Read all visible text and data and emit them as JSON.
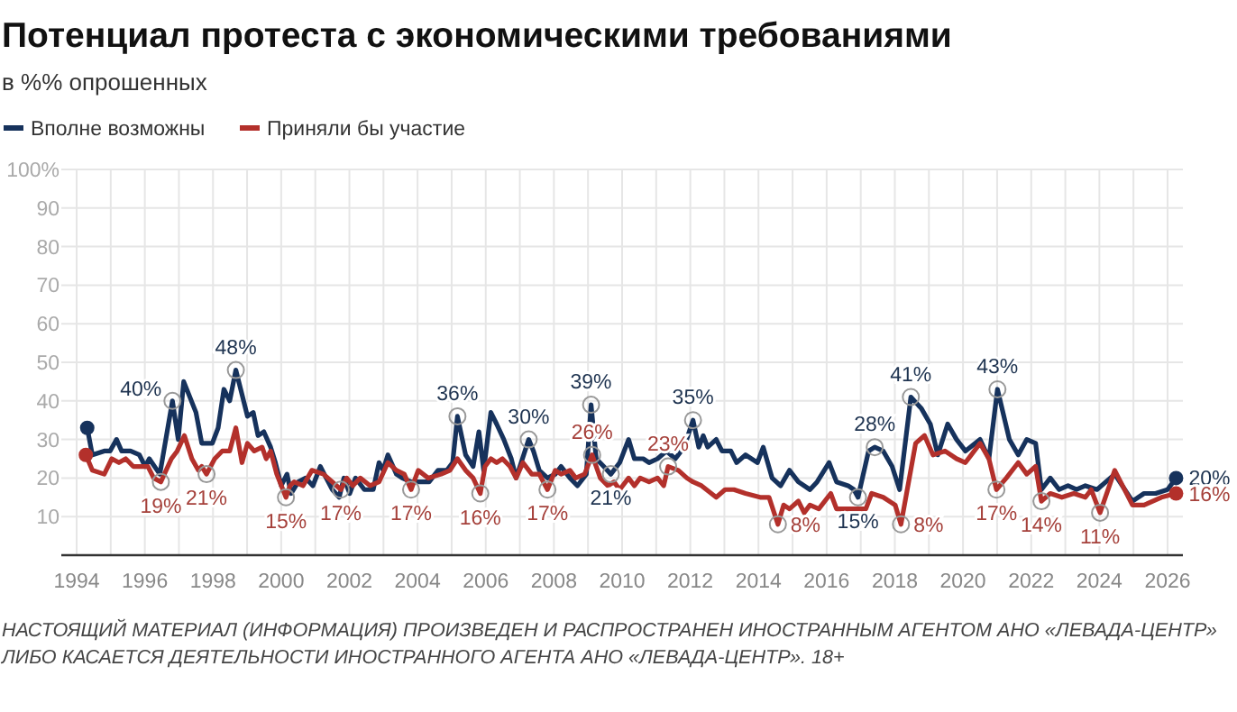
{
  "chart_data": {
    "type": "line",
    "title": "Потенциал протеста с экономическими требованиями",
    "subtitle": "в %% опрошенных",
    "legend": "top left",
    "grid": true,
    "xlim": [
      1993.55,
      2026.45
    ],
    "xticks": [
      1994,
      {
        "value": 1995,
        "label": null
      },
      1996,
      {
        "value": 1997,
        "label": null
      },
      1998,
      {
        "value": 1999,
        "label": null
      },
      2000,
      {
        "value": 2001,
        "label": null
      },
      2002,
      {
        "value": 2003,
        "label": null
      },
      2004,
      {
        "value": 2005,
        "label": null
      },
      2006,
      {
        "value": 2007,
        "label": null
      },
      2008,
      {
        "value": 2009,
        "label": null
      },
      2010,
      {
        "value": 2011,
        "label": null
      },
      2012,
      {
        "value": 2013,
        "label": null
      },
      2014,
      {
        "value": 2015,
        "label": null
      },
      2016,
      {
        "value": 2017,
        "label": null
      },
      2018,
      {
        "value": 2019,
        "label": null
      },
      2020,
      {
        "value": 2021,
        "label": null
      },
      2022,
      {
        "value": 2023,
        "label": null
      },
      2024,
      {
        "value": 2025,
        "label": null
      },
      2026
    ],
    "ylim": [
      0,
      100
    ],
    "yticks": [
      10,
      20,
      30,
      40,
      50,
      60,
      70,
      80,
      90,
      {
        "value": 100,
        "label": "100%"
      }
    ],
    "series": [
      {
        "name": "Вполне возможны",
        "color": "#16325c",
        "x": [
          1994.31,
          1994.46,
          1994.81,
          1994.98,
          1995.17,
          1995.32,
          1995.58,
          1995.84,
          1996.01,
          1996.13,
          1996.44,
          1996.81,
          1996.98,
          1997.14,
          1997.5,
          1997.67,
          1997.98,
          1998.15,
          1998.32,
          1998.49,
          1998.67,
          1998.84,
          1999.01,
          1999.18,
          1999.32,
          1999.49,
          1999.69,
          1999.83,
          2000.0,
          2000.17,
          2000.29,
          2000.5,
          2000.72,
          2000.93,
          2001.15,
          2001.32,
          2001.5,
          2001.7,
          2001.84,
          2002.01,
          2002.18,
          2002.44,
          2002.7,
          2002.87,
          2002.99,
          2003.13,
          2003.38,
          2003.55,
          2003.81,
          2004.15,
          2004.34,
          2004.6,
          2004.86,
          2005.03,
          2005.17,
          2005.41,
          2005.63,
          2005.8,
          2005.94,
          2006.15,
          2006.32,
          2006.53,
          2006.75,
          2006.89,
          2007.04,
          2007.26,
          2007.4,
          2007.57,
          2007.81,
          2008.04,
          2008.21,
          2008.47,
          2008.69,
          2008.95,
          2009.09,
          2009.24,
          2009.46,
          2009.67,
          2009.93,
          2010.19,
          2010.36,
          2010.62,
          2010.79,
          2011.04,
          2011.3,
          2011.56,
          2011.82,
          2012.08,
          2012.25,
          2012.38,
          2012.51,
          2012.76,
          2012.93,
          2013.19,
          2013.36,
          2013.62,
          2013.97,
          2014.14,
          2014.4,
          2014.65,
          2014.91,
          2015.17,
          2015.51,
          2015.72,
          2016.07,
          2016.29,
          2016.63,
          2016.8,
          2016.92,
          2017.23,
          2017.41,
          2017.66,
          2017.92,
          2018.14,
          2018.47,
          2018.78,
          2019.04,
          2019.26,
          2019.55,
          2019.81,
          2020.07,
          2020.5,
          2020.76,
          2021.01,
          2021.36,
          2021.62,
          2021.87,
          2022.13,
          2022.3,
          2022.56,
          2022.82,
          2023.08,
          2023.33,
          2023.59,
          2023.93,
          2024.45,
          2024.97,
          2025.31,
          2025.65,
          2026.0,
          2026.25
        ],
        "values": [
          33,
          26,
          27,
          27,
          30,
          27,
          27,
          26,
          23,
          25,
          21,
          40,
          30,
          45,
          37,
          29,
          29,
          33,
          43,
          40,
          48,
          42,
          36,
          37,
          31,
          32,
          28,
          24,
          18,
          21,
          16,
          19,
          20,
          18,
          23,
          20,
          17,
          15,
          20,
          16,
          20,
          17,
          17,
          24,
          22,
          26,
          21,
          20,
          19,
          19,
          19,
          22,
          22,
          24,
          36,
          26,
          23,
          32,
          22,
          37,
          34,
          30,
          25,
          20,
          24,
          30,
          27,
          22,
          20,
          21,
          23,
          20,
          18,
          21,
          39,
          25,
          23,
          21,
          24,
          30,
          25,
          25,
          24,
          25,
          27,
          25,
          28,
          35,
          28,
          31,
          28,
          30,
          27,
          27,
          24,
          26,
          24,
          28,
          20,
          18,
          22,
          19,
          17,
          19,
          24,
          19,
          18,
          17,
          15,
          27,
          28,
          27,
          23,
          17,
          41,
          38,
          34,
          26,
          34,
          30,
          27,
          30,
          25,
          43,
          30,
          26,
          30,
          29,
          17,
          20,
          17,
          18,
          17,
          18,
          17,
          21,
          14,
          16,
          16,
          17,
          20
        ]
      },
      {
        "name": "Приняли бы участие",
        "color": "#b3302b",
        "x": [
          1994.27,
          1994.46,
          1994.81,
          1995.03,
          1995.24,
          1995.44,
          1995.66,
          1995.89,
          1996.09,
          1996.26,
          1996.47,
          1996.78,
          1996.95,
          1997.16,
          1997.38,
          1997.57,
          1997.67,
          1997.81,
          1998.05,
          1998.27,
          1998.49,
          1998.67,
          1998.85,
          1999.01,
          1999.21,
          1999.44,
          1999.56,
          1999.69,
          1999.87,
          2000.14,
          2000.26,
          2000.38,
          2000.64,
          2000.9,
          2001.24,
          2001.5,
          2001.75,
          2001.92,
          2002.1,
          2002.32,
          2002.61,
          2002.87,
          2003.13,
          2003.38,
          2003.61,
          2003.81,
          2004.02,
          2004.31,
          2004.69,
          2004.95,
          2005.17,
          2005.41,
          2005.63,
          2005.84,
          2005.98,
          2006.15,
          2006.32,
          2006.49,
          2006.71,
          2006.89,
          2007.09,
          2007.35,
          2007.57,
          2007.81,
          2008.04,
          2008.21,
          2008.47,
          2008.64,
          2008.9,
          2009.12,
          2009.36,
          2009.58,
          2009.76,
          2009.93,
          2010.19,
          2010.36,
          2010.53,
          2010.79,
          2011.04,
          2011.22,
          2011.35,
          2011.65,
          2011.9,
          2012.08,
          2012.33,
          2012.76,
          2013.02,
          2013.28,
          2013.62,
          2014.05,
          2014.31,
          2014.57,
          2014.74,
          2014.91,
          2015.17,
          2015.34,
          2015.51,
          2015.77,
          2016.12,
          2016.29,
          2016.55,
          2016.89,
          2017.15,
          2017.32,
          2017.66,
          2018.01,
          2018.18,
          2018.61,
          2018.87,
          2019.12,
          2019.47,
          2019.81,
          2020.07,
          2020.5,
          2020.76,
          2020.98,
          2021.27,
          2021.62,
          2021.87,
          2022.13,
          2022.3,
          2022.56,
          2022.9,
          2023.25,
          2023.59,
          2023.76,
          2024.02,
          2024.45,
          2024.97,
          2025.31,
          2025.82,
          2026.25
        ],
        "values": [
          26,
          22,
          21,
          25,
          24,
          25,
          23,
          23,
          23,
          20,
          19,
          25,
          27,
          31,
          25,
          22,
          23,
          21,
          25,
          27,
          27,
          33,
          24,
          29,
          27,
          28,
          25,
          27,
          21,
          15,
          18,
          19,
          18,
          22,
          21,
          19,
          17,
          20,
          18,
          20,
          18,
          19,
          24,
          22,
          21,
          17,
          22,
          20,
          21,
          22,
          25,
          22,
          20,
          16,
          23,
          25,
          24,
          25,
          23,
          20,
          24,
          21,
          21,
          17,
          22,
          21,
          22,
          20,
          21,
          26,
          20,
          18,
          19,
          17,
          20,
          18,
          20,
          19,
          20,
          18,
          23,
          22,
          20,
          19,
          18,
          15,
          17,
          17,
          16,
          15,
          15,
          8,
          13,
          12,
          14,
          11,
          13,
          12,
          16,
          12,
          12,
          12,
          12,
          16,
          15,
          13,
          8,
          29,
          31,
          26,
          27,
          25,
          24,
          29,
          25,
          17,
          20,
          24,
          21,
          23,
          14,
          16,
          15,
          16,
          15,
          17,
          11,
          22,
          13,
          13,
          15,
          16
        ]
      }
    ],
    "annotations": [
      {
        "text": "40%",
        "x": 1996.81,
        "y": 40
      },
      {
        "text": "48%",
        "x": 1998.67,
        "y": 48
      },
      {
        "text": "36%",
        "x": 2005.17,
        "y": 36
      },
      {
        "text": "30%",
        "x": 2007.26,
        "y": 30
      },
      {
        "text": "39%",
        "x": 2009.09,
        "y": 39
      },
      {
        "text": "21%",
        "x": 2009.67,
        "y": 21
      },
      {
        "text": "35%",
        "x": 2012.08,
        "y": 35
      },
      {
        "text": "15%",
        "x": 2016.92,
        "y": 15
      },
      {
        "text": "28%",
        "x": 2017.41,
        "y": 28
      },
      {
        "text": "41%",
        "x": 2018.47,
        "y": 41
      },
      {
        "text": "43%",
        "x": 2021.01,
        "y": 43
      },
      {
        "text": "20%",
        "x": 2026.25,
        "y": 20
      },
      {
        "text": "19%",
        "x": 1996.47,
        "y": 19
      },
      {
        "text": "21%",
        "x": 1997.81,
        "y": 21
      },
      {
        "text": "15%",
        "x": 2000.14,
        "y": 15
      },
      {
        "text": "17%",
        "x": 2001.75,
        "y": 17
      },
      {
        "text": "17%",
        "x": 2003.81,
        "y": 17
      },
      {
        "text": "16%",
        "x": 2005.84,
        "y": 16
      },
      {
        "text": "17%",
        "x": 2007.81,
        "y": 17
      },
      {
        "text": "26%",
        "x": 2009.12,
        "y": 26
      },
      {
        "text": "23%",
        "x": 2011.35,
        "y": 23
      },
      {
        "text": "8%",
        "x": 2014.57,
        "y": 8
      },
      {
        "text": "8%",
        "x": 2018.18,
        "y": 8
      },
      {
        "text": "17%",
        "x": 2020.98,
        "y": 17
      },
      {
        "text": "14%",
        "x": 2022.3,
        "y": 14
      },
      {
        "text": "11%",
        "x": 2024.02,
        "y": 11
      },
      {
        "text": "16%",
        "x": 2026.25,
        "y": 16
      },
      "НАСТОЯЩИЙ МАТЕРИАЛ (ИНФОРМАЦИЯ) ПРОИЗВЕДЕН И РАСПРОСТРАНЕН ИНОСТРАННЫМ АГЕНТОМ АНО «ЛЕВАДА-ЦЕНТР» ЛИБО КАСАЕТСЯ ДЕЯТЕЛЬНОСТИ ИНОСТРАННОГО АГЕНТА АНО «ЛЕВАДА-ЦЕНТР». 18+"
    ]
  }
}
